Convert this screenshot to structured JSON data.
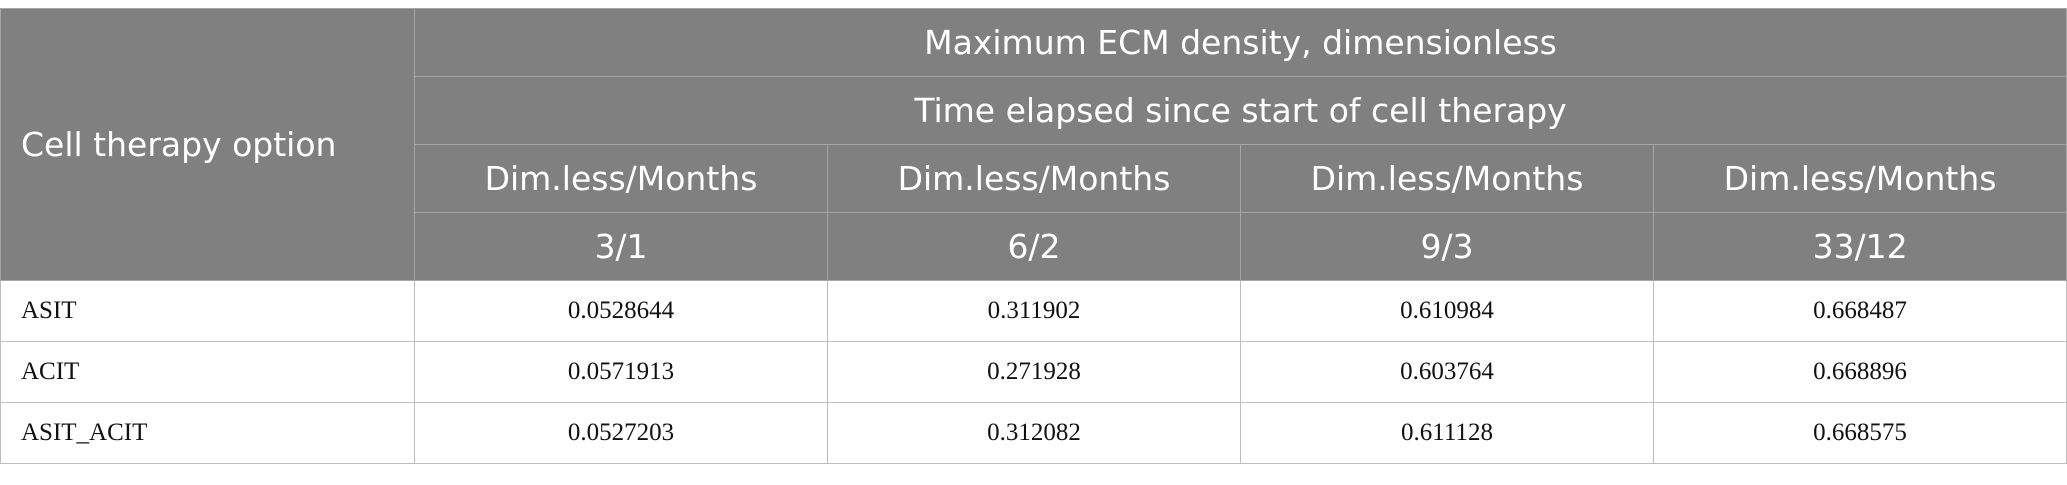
{
  "header": {
    "row_label": "Cell therapy option",
    "title": "Maximum ECM density, dimensionless",
    "subtitle": "Time elapsed since start of cell therapy",
    "columns": [
      {
        "unit": "Dim.less/Months",
        "value": "3/1"
      },
      {
        "unit": "Dim.less/Months",
        "value": "6/2"
      },
      {
        "unit": "Dim.less/Months",
        "value": "9/3"
      },
      {
        "unit": "Dim.less/Months",
        "value": "33/12"
      }
    ]
  },
  "table": {
    "rows": [
      [
        "ASIT",
        "0.0528644",
        "0.311902",
        "0.610984",
        "0.668487"
      ],
      [
        "ACIT",
        "0.0571913",
        "0.271928",
        "0.603764",
        "0.668896"
      ],
      [
        "ASIT_ACIT",
        "0.0527203",
        "0.312082",
        "0.611128",
        "0.668575"
      ]
    ]
  }
}
